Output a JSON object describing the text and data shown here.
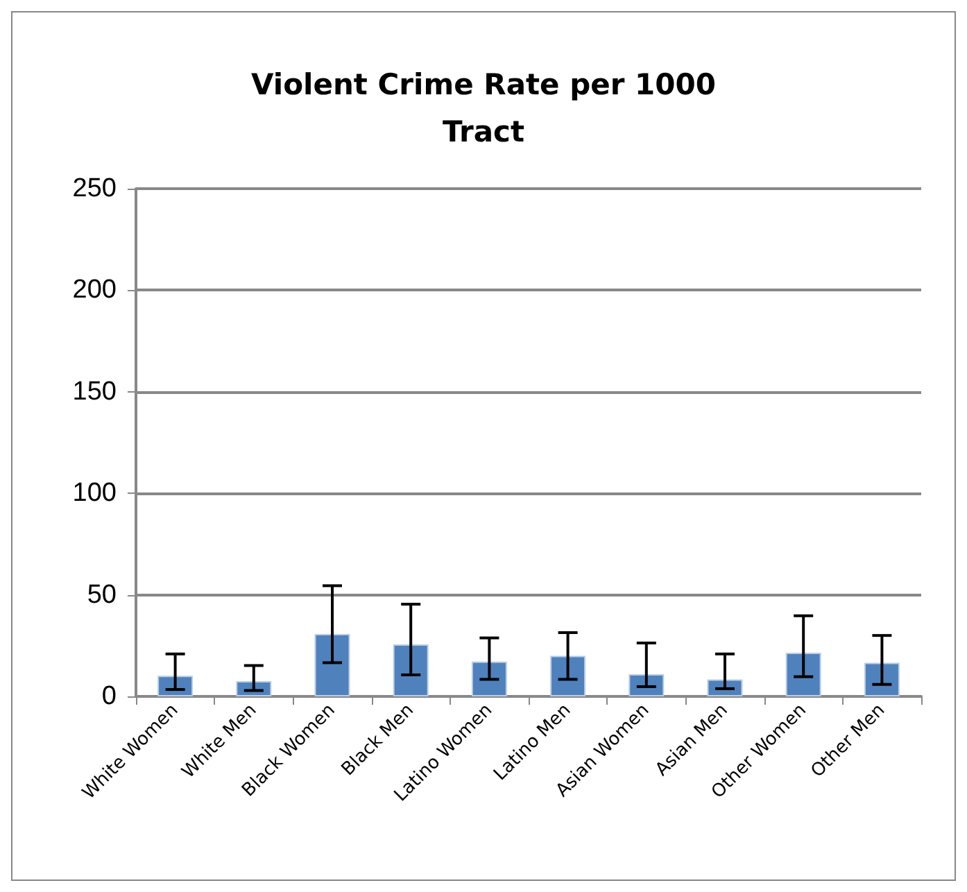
{
  "chart_data": {
    "type": "bar",
    "title": "Violent Crime Rate per 1000\nTract",
    "categories": [
      "White Women",
      "White Men",
      "Black Women",
      "Black Men",
      "Latino Women",
      "Latino Men",
      "Asian Women",
      "Asian Men",
      "Other Women",
      "Other Men"
    ],
    "values": [
      10.2,
      7.5,
      30.7,
      25.6,
      17.2,
      20,
      10.9,
      8.4,
      21.5,
      16.6
    ],
    "errors": [
      [
        3.4,
        20.9
      ],
      [
        2.9,
        15.2
      ],
      [
        16.6,
        54.5
      ],
      [
        10.6,
        45.4
      ],
      [
        8.4,
        28.8
      ],
      [
        8.4,
        31.4
      ],
      [
        4.8,
        26.3
      ],
      [
        3.8,
        20.9
      ],
      [
        9.7,
        39.7
      ],
      [
        5.9,
        30
      ]
    ],
    "color": "#4f81bd",
    "ylim": [
      0,
      250
    ],
    "yticks": [
      0,
      50,
      100,
      150,
      200,
      250
    ],
    "grid": "y"
  }
}
